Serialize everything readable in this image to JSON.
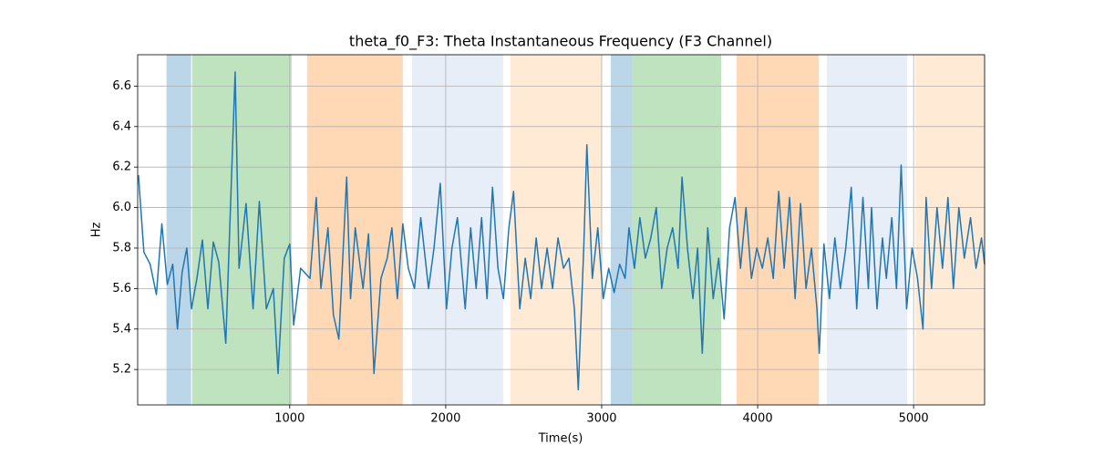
{
  "chart_data": {
    "type": "line",
    "title": "theta_f0_F3: Theta Instantaneous Frequency (F3 Channel)",
    "xlabel": "Time(s)",
    "ylabel": "Hz",
    "xlim": [
      25,
      5455
    ],
    "ylim": [
      5.025,
      6.755
    ],
    "xticks": [
      1000,
      2000,
      3000,
      4000,
      5000
    ],
    "yticks": [
      5.2,
      5.4,
      5.6,
      5.8,
      {
        "value": 6,
        "label": "6.0"
      },
      6.2,
      6.4,
      6.6
    ],
    "grid": true,
    "spans": [
      {
        "start": 210,
        "end": 368,
        "color": "#1f77b4"
      },
      {
        "start": 374,
        "end": 1012,
        "color": "#2ca02c"
      },
      {
        "start": 1111,
        "end": 1725,
        "color": "#ff7f0e"
      },
      {
        "start": 1784,
        "end": 2368,
        "color": "#aec7e8"
      },
      {
        "start": 2415,
        "end": 3000,
        "color": "#ffbb78"
      },
      {
        "start": 3058,
        "end": 3193,
        "color": "#1f77b4"
      },
      {
        "start": 3193,
        "end": 3766,
        "color": "#2ca02c"
      },
      {
        "start": 3865,
        "end": 4392,
        "color": "#ff7f0e"
      },
      {
        "start": 4444,
        "end": 4959,
        "color": "#aec7e8"
      },
      {
        "start": 5012,
        "end": 5460,
        "color": "#ffbb78"
      }
    ],
    "x": [
      30,
      65,
      105,
      145,
      180,
      215,
      250,
      280,
      310,
      340,
      370,
      405,
      440,
      475,
      510,
      545,
      590,
      650,
      675,
      720,
      765,
      805,
      850,
      895,
      925,
      965,
      1000,
      1025,
      1070,
      1130,
      1170,
      1200,
      1245,
      1280,
      1315,
      1365,
      1390,
      1420,
      1470,
      1505,
      1540,
      1585,
      1625,
      1655,
      1690,
      1725,
      1760,
      1800,
      1840,
      1890,
      1925,
      1965,
      2005,
      2040,
      2075,
      2125,
      2160,
      2195,
      2230,
      2265,
      2300,
      2335,
      2370,
      2405,
      2435,
      2475,
      2510,
      2545,
      2580,
      2615,
      2650,
      2685,
      2720,
      2755,
      2790,
      2825,
      2850,
      2885,
      2905,
      2940,
      2975,
      3010,
      3045,
      3080,
      3115,
      3150,
      3175,
      3210,
      3245,
      3280,
      3315,
      3350,
      3385,
      3420,
      3455,
      3490,
      3515,
      3550,
      3585,
      3615,
      3645,
      3680,
      3715,
      3750,
      3785,
      3820,
      3855,
      3890,
      3925,
      3960,
      3995,
      4030,
      4065,
      4100,
      4135,
      4170,
      4205,
      4240,
      4275,
      4310,
      4345,
      4380,
      4395,
      4425,
      4460,
      4495,
      4530,
      4565,
      4600,
      4635,
      4675,
      4710,
      4730,
      4765,
      4800,
      4825,
      4860,
      4890,
      4920,
      4955,
      4990,
      5025,
      5060,
      5080,
      5115,
      5150,
      5185,
      5220,
      5255,
      5290,
      5325,
      5365,
      5400,
      5435,
      5455
    ],
    "series": [
      {
        "name": "theta_f0_F3",
        "color": "#1f77b4",
        "values": [
          6.16,
          5.78,
          5.72,
          5.57,
          5.92,
          5.62,
          5.72,
          5.4,
          5.68,
          5.8,
          5.5,
          5.65,
          5.84,
          5.5,
          5.83,
          5.73,
          5.33,
          6.67,
          5.7,
          6.02,
          5.5,
          6.03,
          5.5,
          5.6,
          5.18,
          5.75,
          5.82,
          5.42,
          5.7,
          5.65,
          6.05,
          5.6,
          5.9,
          5.47,
          5.35,
          6.15,
          5.55,
          5.9,
          5.6,
          5.87,
          5.18,
          5.65,
          5.75,
          5.9,
          5.55,
          5.92,
          5.7,
          5.6,
          5.95,
          5.6,
          5.8,
          6.12,
          5.5,
          5.8,
          5.95,
          5.5,
          5.9,
          5.6,
          5.95,
          5.55,
          6.1,
          5.7,
          5.55,
          5.9,
          6.08,
          5.5,
          5.75,
          5.55,
          5.85,
          5.6,
          5.8,
          5.6,
          5.85,
          5.7,
          5.75,
          5.5,
          5.1,
          5.8,
          6.31,
          5.65,
          5.9,
          5.55,
          5.7,
          5.58,
          5.72,
          5.65,
          5.9,
          5.7,
          5.95,
          5.75,
          5.85,
          6.0,
          5.6,
          5.8,
          5.9,
          5.7,
          6.15,
          5.8,
          5.55,
          5.8,
          5.28,
          5.9,
          5.55,
          5.75,
          5.45,
          5.9,
          6.05,
          5.7,
          6.0,
          5.65,
          5.8,
          5.7,
          5.85,
          5.65,
          6.08,
          5.7,
          6.05,
          5.55,
          6.02,
          5.6,
          5.8,
          5.5,
          5.28,
          5.82,
          5.55,
          5.85,
          5.6,
          5.8,
          6.1,
          5.5,
          6.05,
          5.6,
          6.0,
          5.5,
          5.85,
          5.65,
          5.95,
          5.6,
          6.21,
          5.5,
          5.8,
          5.65,
          5.4,
          6.05,
          5.6,
          6.0,
          5.7,
          6.05,
          5.6,
          6.0,
          5.75,
          5.95,
          5.7,
          5.85,
          5.72
        ]
      }
    ]
  }
}
